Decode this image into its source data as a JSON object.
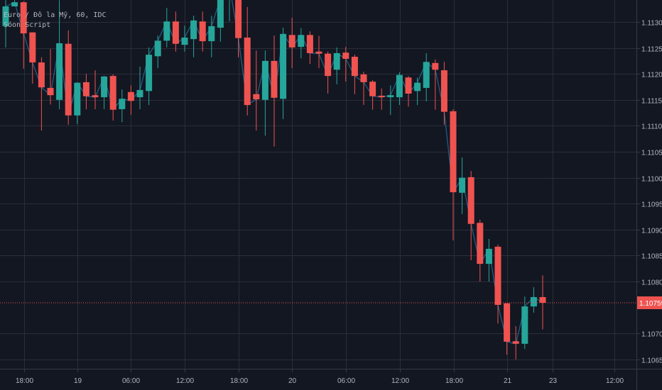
{
  "legend": {
    "symbol": "Euro / Đô la Mỹ, 60, IDC",
    "indicator": "Sóon Script"
  },
  "colors": {
    "background": "#131722",
    "grid": "#2a2e39",
    "up": "#26a69a",
    "down": "#ef5350",
    "close_line": "#1f5f85",
    "axis_text": "#b2b5be"
  },
  "chart_data": {
    "type": "candlestick",
    "interval": "60",
    "ylim": [
      1.10625,
      1.11342
    ],
    "y_ticks": [
      "1.11300",
      "1.11250",
      "1.11200",
      "1.11150",
      "1.11100",
      "1.11050",
      "1.11000",
      "1.10950",
      "1.10900",
      "1.10850",
      "1.10800",
      "1.10700",
      "1.10650"
    ],
    "x_ticks": [
      "18:00",
      "19",
      "06:00",
      "12:00",
      "18:00",
      "20",
      "06:00",
      "12:00",
      "18:00",
      "21",
      "23",
      "12:00"
    ],
    "last_price": "1.10759",
    "grid": true,
    "ohlc": [
      [
        1.11292,
        1.11342,
        1.11251,
        1.1133
      ],
      [
        1.1133,
        1.11342,
        1.1133,
        1.11338
      ],
      [
        1.11338,
        1.1134,
        1.1121,
        1.11278
      ],
      [
        1.1128,
        1.1128,
        1.11181,
        1.11222
      ],
      [
        1.11222,
        1.11232,
        1.11091,
        1.11174
      ],
      [
        1.11173,
        1.11248,
        1.11141,
        1.11159
      ],
      [
        1.1115,
        1.11342,
        1.11132,
        1.11259
      ],
      [
        1.11258,
        1.11284,
        1.11102,
        1.1112
      ],
      [
        1.1112,
        1.11183,
        1.11103,
        1.11183
      ],
      [
        1.11184,
        1.112,
        1.11132,
        1.11157
      ],
      [
        1.11159,
        1.11207,
        1.11132,
        1.11155
      ],
      [
        1.11155,
        1.11195,
        1.11132,
        1.11195
      ],
      [
        1.11196,
        1.11199,
        1.1111,
        1.11131
      ],
      [
        1.11132,
        1.1117,
        1.11107,
        1.11152
      ],
      [
        1.11165,
        1.11178,
        1.11121,
        1.11148
      ],
      [
        1.11155,
        1.11214,
        1.11132,
        1.11169
      ],
      [
        1.11167,
        1.11251,
        1.1114,
        1.11237
      ],
      [
        1.11234,
        1.11274,
        1.11211,
        1.11264
      ],
      [
        1.11264,
        1.11327,
        1.11251,
        1.11301
      ],
      [
        1.11301,
        1.1132,
        1.11243,
        1.11258
      ],
      [
        1.11256,
        1.11293,
        1.11243,
        1.1127
      ],
      [
        1.11267,
        1.11312,
        1.11232,
        1.11303
      ],
      [
        1.11301,
        1.1132,
        1.11243,
        1.11263
      ],
      [
        1.11263,
        1.11312,
        1.11232,
        1.11292
      ],
      [
        1.11289,
        1.1136,
        1.11262,
        1.11345
      ],
      [
        1.1135,
        1.1138,
        1.11301,
        1.1137
      ],
      [
        1.1136,
        1.11375,
        1.11232,
        1.11269
      ],
      [
        1.1127,
        1.11329,
        1.1112,
        1.1114
      ],
      [
        1.11161,
        1.11245,
        1.11091,
        1.11151
      ],
      [
        1.1115,
        1.11245,
        1.11081,
        1.11225
      ],
      [
        1.11225,
        1.11274,
        1.1106,
        1.11154
      ],
      [
        1.11152,
        1.11289,
        1.11113,
        1.11277
      ],
      [
        1.11275,
        1.11308,
        1.11211,
        1.11251
      ],
      [
        1.11252,
        1.11288,
        1.1123,
        1.11275
      ],
      [
        1.11275,
        1.11282,
        1.11219,
        1.1124
      ],
      [
        1.11243,
        1.11273,
        1.11211,
        1.11239
      ],
      [
        1.11239,
        1.11243,
        1.11162,
        1.11196
      ],
      [
        1.11208,
        1.11251,
        1.1118,
        1.1124
      ],
      [
        1.11241,
        1.11252,
        1.11185,
        1.11229
      ],
      [
        1.11233,
        1.11237,
        1.11161,
        1.11196
      ],
      [
        1.11199,
        1.11204,
        1.1114,
        1.11184
      ],
      [
        1.11185,
        1.11188,
        1.11131,
        1.11157
      ],
      [
        1.11158,
        1.11172,
        1.11131,
        1.11155
      ],
      [
        1.11155,
        1.11178,
        1.11121,
        1.11159
      ],
      [
        1.11155,
        1.11203,
        1.1114,
        1.11198
      ],
      [
        1.11193,
        1.11196,
        1.11137,
        1.11162
      ],
      [
        1.11167,
        1.11193,
        1.1114,
        1.11183
      ],
      [
        1.11173,
        1.1124,
        1.11147,
        1.11223
      ],
      [
        1.11221,
        1.11228,
        1.11131,
        1.11208
      ],
      [
        1.11207,
        1.11223,
        1.11102,
        1.11127
      ],
      [
        1.11128,
        1.11132,
        1.10879,
        1.10972
      ],
      [
        1.10971,
        1.11039,
        1.1093,
        1.11
      ],
      [
        1.11001,
        1.11013,
        1.10841,
        1.10911
      ],
      [
        1.10913,
        1.10919,
        1.108,
        1.10834
      ],
      [
        1.10834,
        1.10882,
        1.108,
        1.10863
      ],
      [
        1.10867,
        1.10871,
        1.10719,
        1.10755
      ],
      [
        1.10758,
        1.10758,
        1.10659,
        1.10684
      ],
      [
        1.10685,
        1.10714,
        1.1065,
        1.1068
      ],
      [
        1.1068,
        1.10771,
        1.1067,
        1.10752
      ],
      [
        1.10752,
        1.10789,
        1.1074,
        1.1077
      ],
      [
        1.1077,
        1.10812,
        1.10708,
        1.10759
      ]
    ]
  }
}
